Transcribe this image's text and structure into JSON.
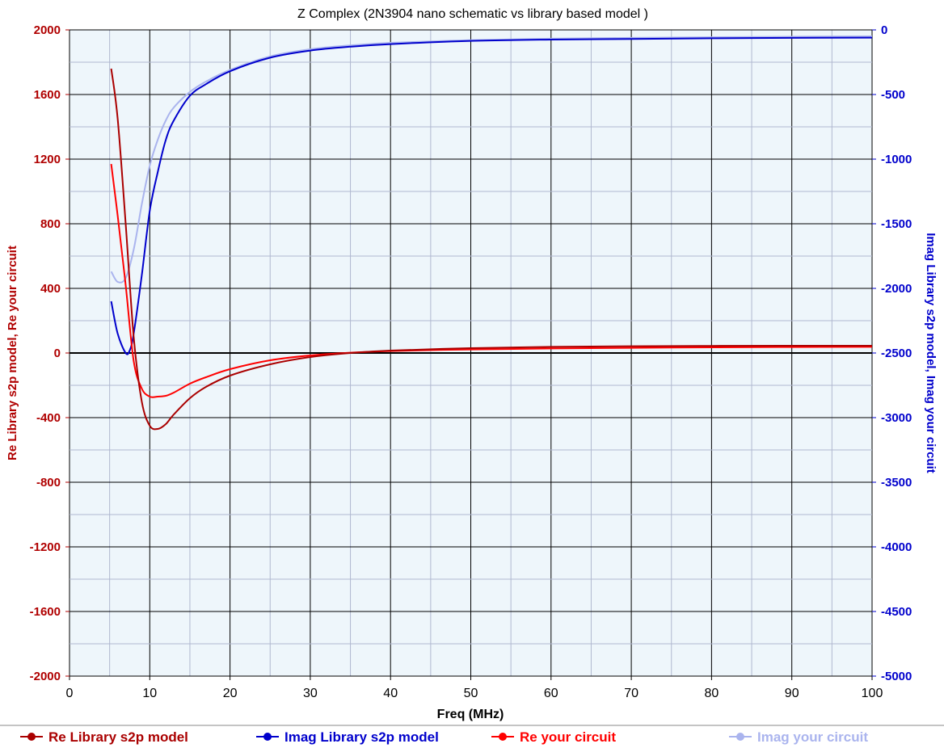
{
  "chart_data": {
    "type": "line",
    "title": "Z Complex   (2N3904 nano schematic  vs library based model )",
    "xlabel": "Freq (MHz)",
    "ylabel_left": "Re Library s2p model, Re your circuit",
    "ylabel_right": "Imag Library s2p model, Imag your circuit",
    "xlim": [
      0,
      100
    ],
    "ylim_left": [
      -2000,
      2000
    ],
    "ylim_right": [
      -5000,
      0
    ],
    "x_ticks": [
      "0",
      "10",
      "20",
      "30",
      "40",
      "50",
      "60",
      "70",
      "80",
      "90",
      "100"
    ],
    "y_ticks_left": [
      "2000",
      "1600",
      "1200",
      "800",
      "400",
      "0",
      "-400",
      "-800",
      "-1200",
      "-1600",
      "-2000"
    ],
    "y_ticks_right": [
      "0",
      "-500",
      "-1000",
      "-1500",
      "-2000",
      "-2500",
      "-3000",
      "-3500",
      "-4000",
      "-4500",
      "-5000"
    ],
    "grid": true,
    "legend_position": "bottom",
    "series": [
      {
        "name": "Re Library s2p model",
        "axis": "left",
        "color": "#aa0000",
        "x": [
          5.2,
          6,
          7,
          8,
          9,
          10,
          11,
          12,
          13,
          15,
          17,
          20,
          25,
          30,
          35,
          40,
          50,
          60,
          70,
          80,
          90,
          100
        ],
        "y": [
          1760,
          1450,
          800,
          100,
          -300,
          -450,
          -470,
          -440,
          -380,
          -280,
          -210,
          -140,
          -70,
          -25,
          0,
          15,
          30,
          38,
          42,
          44,
          45,
          45
        ]
      },
      {
        "name": "Imag Library s2p model",
        "axis": "right",
        "color": "#0000cc",
        "x": [
          5.2,
          6,
          7,
          7.5,
          8,
          9,
          10,
          11,
          12,
          13,
          15,
          17,
          20,
          25,
          30,
          35,
          40,
          50,
          60,
          70,
          80,
          90,
          100
        ],
        "y": [
          -2100,
          -2350,
          -2500,
          -2480,
          -2350,
          -1900,
          -1400,
          -1100,
          -850,
          -700,
          -510,
          -420,
          -320,
          -215,
          -160,
          -130,
          -110,
          -85,
          -75,
          -70,
          -65,
          -62,
          -60
        ]
      },
      {
        "name": "Re your circuit",
        "axis": "left",
        "color": "#ff0000",
        "x": [
          5.2,
          6,
          7,
          8,
          9,
          10,
          11,
          12,
          13,
          15,
          17,
          20,
          25,
          30,
          35,
          40,
          50,
          60,
          70,
          80,
          90,
          100
        ],
        "y": [
          1170,
          850,
          420,
          -50,
          -220,
          -270,
          -270,
          -265,
          -245,
          -190,
          -150,
          -100,
          -45,
          -15,
          2,
          12,
          22,
          28,
          32,
          35,
          37,
          38
        ]
      },
      {
        "name": "Imag your circuit",
        "axis": "right",
        "color": "#aab4ee",
        "x": [
          5.2,
          6,
          7,
          8,
          9,
          10,
          11,
          12,
          13,
          15,
          17,
          20,
          25,
          30,
          35,
          40,
          50,
          60,
          70,
          80,
          90,
          100
        ],
        "y": [
          -1870,
          -1950,
          -1920,
          -1700,
          -1350,
          -1050,
          -850,
          -700,
          -600,
          -480,
          -400,
          -310,
          -205,
          -150,
          -120,
          -100,
          -80,
          -68,
          -62,
          -57,
          -53,
          -50
        ]
      }
    ]
  },
  "legend": [
    {
      "label": "Re Library s2p model",
      "color": "#aa0000"
    },
    {
      "label": "Imag Library s2p model",
      "color": "#0000cc"
    },
    {
      "label": "Re your circuit",
      "color": "#ff0000"
    },
    {
      "label": "Imag your circuit",
      "color": "#aab4ee"
    }
  ],
  "colors": {
    "plot_background": "#eef6fb",
    "major_grid": "#000000",
    "minor_grid": "#b0b8d0",
    "left_axis": "#b00000",
    "right_axis": "#0000cc"
  }
}
